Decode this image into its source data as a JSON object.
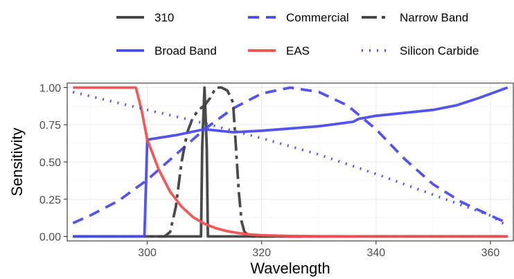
{
  "chart_data": {
    "type": "line",
    "xlabel": "Wavelength",
    "ylabel": "Sensitivity",
    "xlim": [
      286,
      364
    ],
    "ylim": [
      -0.03,
      1.03
    ],
    "x_ticks": [
      300,
      320,
      340,
      360
    ],
    "y_ticks": [
      0.0,
      0.25,
      0.5,
      0.75,
      1.0
    ],
    "x_tick_labels": [
      "300",
      "320",
      "340",
      "360"
    ],
    "y_tick_labels": [
      "0.00",
      "0.25",
      "0.50",
      "0.75",
      "1.00"
    ],
    "grid": true,
    "legend_position": "top",
    "series": [
      {
        "name": "310",
        "color": "#404040",
        "dash": "solid",
        "x": [
          287,
          309.4,
          309.6,
          310.0,
          310.4,
          310.6,
          363
        ],
        "y": [
          0,
          0,
          0.6,
          1.0,
          0.6,
          0,
          0
        ]
      },
      {
        "name": "Commercial",
        "color": "#4a4aee",
        "dash": "dashed",
        "x": [
          287,
          290,
          295,
          300,
          305,
          310,
          315,
          320,
          325,
          330,
          335,
          340,
          345,
          350,
          355,
          360,
          363
        ],
        "y": [
          0.09,
          0.14,
          0.24,
          0.38,
          0.55,
          0.72,
          0.86,
          0.96,
          1.0,
          0.97,
          0.88,
          0.72,
          0.52,
          0.35,
          0.23,
          0.14,
          0.09
        ]
      },
      {
        "name": "Narrow Band",
        "color": "#404040",
        "dash": "longdash",
        "x": [
          287,
          303,
          304,
          305,
          306,
          307,
          308,
          309,
          310,
          311,
          312,
          313,
          314,
          315,
          315.5,
          316,
          316.5,
          317,
          318,
          363
        ],
        "y": [
          0,
          0,
          0.03,
          0.2,
          0.5,
          0.7,
          0.8,
          0.85,
          0.88,
          0.93,
          1.0,
          1.0,
          0.98,
          0.9,
          0.6,
          0.3,
          0.1,
          0.03,
          0,
          0
        ]
      },
      {
        "name": "Broad Band",
        "color": "#4a4aee",
        "dash": "solid",
        "x": [
          287,
          299.5,
          300,
          305,
          310,
          315,
          320,
          330,
          336,
          337,
          340,
          345,
          350,
          354,
          358,
          363
        ],
        "y": [
          0,
          0,
          0.65,
          0.68,
          0.72,
          0.7,
          0.71,
          0.74,
          0.77,
          0.79,
          0.81,
          0.83,
          0.85,
          0.88,
          0.93,
          1.0
        ]
      },
      {
        "name": "EAS",
        "color": "#f25050",
        "dash": "solid",
        "x": [
          287,
          298,
          299,
          300,
          302,
          304,
          306,
          308,
          310,
          312,
          314,
          316,
          318,
          320,
          325,
          330,
          340,
          363
        ],
        "y": [
          1.0,
          1.0,
          0.85,
          0.65,
          0.45,
          0.3,
          0.2,
          0.13,
          0.085,
          0.055,
          0.035,
          0.022,
          0.013,
          0.008,
          0.003,
          0.001,
          0,
          0
        ]
      },
      {
        "name": "Silicon Carbide",
        "color": "#4a4aee",
        "dash": "dotted",
        "x": [
          287,
          300,
          310,
          320,
          330,
          340,
          350,
          360,
          363
        ],
        "y": [
          0.97,
          0.85,
          0.76,
          0.66,
          0.55,
          0.42,
          0.28,
          0.14,
          0.07
        ]
      }
    ]
  }
}
